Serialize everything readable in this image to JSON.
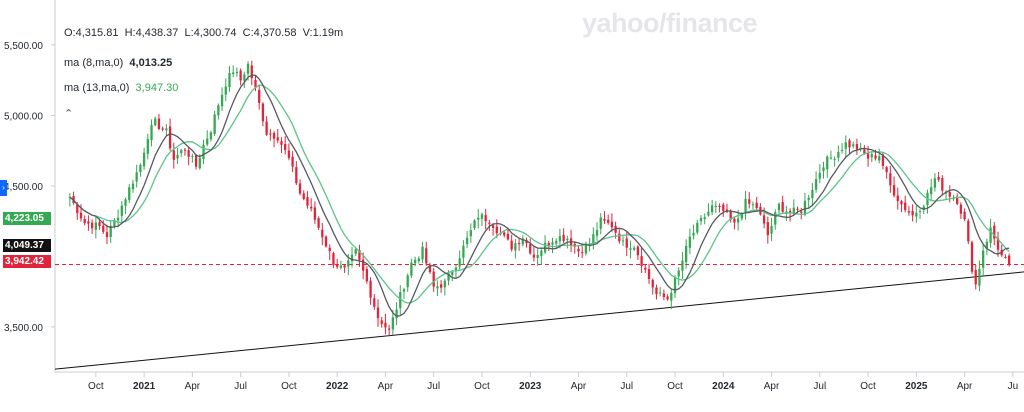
{
  "watermark": "yahoo/finance",
  "ohlcv": {
    "open": "O:4,315.81",
    "high": "H:4,438.37",
    "low": "L:4,300.74",
    "close": "C:4,370.58",
    "volume": "V:1.19m"
  },
  "indicators": [
    {
      "label": "ma (8,ma,0)",
      "value": "4,013.25",
      "color": "#555b60"
    },
    {
      "label": "ma (13,ma,0)",
      "value": "3,947.30",
      "color": "#35a853"
    }
  ],
  "badges": {
    "ma13": "4,223.05",
    "ma8": "4,049.37",
    "last": "3,942.42"
  },
  "colors": {
    "up": "#35a853",
    "down": "#e0243b",
    "ma8": "#555b60",
    "ma13": "#5cc48a",
    "trend": "#111111",
    "refline": "#e0243b",
    "accent": "#0f69ff"
  },
  "icons": {
    "collapse": "chevron-up-icon",
    "side_tab": "chevron-right-icon"
  },
  "chart_data": {
    "type": "candlestick",
    "y_ticks": [
      "5,500.00",
      "5,000.00",
      "4,500.00",
      "3,500.00"
    ],
    "y_tick_values": [
      5500,
      5000,
      4500,
      3500
    ],
    "ylim": [
      3180,
      5620
    ],
    "x_tick_labels": [
      "Oct",
      "2021",
      "Apr",
      "Jul",
      "Oct",
      "2022",
      "Apr",
      "Jul",
      "Oct",
      "2023",
      "Apr",
      "Jul",
      "Oct",
      "2024",
      "Apr",
      "Jul",
      "Oct",
      "2025",
      "Apr",
      "Ju"
    ],
    "x_tick_weeks": [
      7,
      20,
      33,
      46,
      59,
      72,
      85,
      98,
      111,
      124,
      137,
      150,
      163,
      176,
      189,
      202,
      215,
      228,
      241,
      254
    ],
    "year_ticks": [
      "2021",
      "2022",
      "2023",
      "2024",
      "2025"
    ],
    "x_span_weeks": [
      -4,
      257
    ],
    "reference_line": 3942.42,
    "trend_line": {
      "start": [
        -4,
        3200
      ],
      "end": [
        257,
        3890
      ]
    },
    "close_anchors": [
      [
        0,
        4420
      ],
      [
        4,
        4240
      ],
      [
        8,
        4210
      ],
      [
        10,
        4150
      ],
      [
        13,
        4300
      ],
      [
        16,
        4480
      ],
      [
        19,
        4650
      ],
      [
        21,
        4860
      ],
      [
        23,
        4950
      ],
      [
        26,
        4880
      ],
      [
        28,
        4690
      ],
      [
        31,
        4770
      ],
      [
        34,
        4640
      ],
      [
        36,
        4790
      ],
      [
        38,
        4900
      ],
      [
        40,
        5080
      ],
      [
        42,
        5230
      ],
      [
        44,
        5320
      ],
      [
        46,
        5250
      ],
      [
        48,
        5360
      ],
      [
        50,
        5180
      ],
      [
        53,
        4880
      ],
      [
        56,
        4850
      ],
      [
        59,
        4690
      ],
      [
        62,
        4450
      ],
      [
        65,
        4320
      ],
      [
        68,
        4150
      ],
      [
        71,
        3960
      ],
      [
        74,
        3900
      ],
      [
        77,
        4030
      ],
      [
        80,
        3820
      ],
      [
        83,
        3570
      ],
      [
        86,
        3470
      ],
      [
        89,
        3720
      ],
      [
        92,
        3950
      ],
      [
        95,
        4040
      ],
      [
        98,
        3780
      ],
      [
        101,
        3810
      ],
      [
        104,
        3950
      ],
      [
        107,
        4120
      ],
      [
        110,
        4290
      ],
      [
        113,
        4260
      ],
      [
        116,
        4160
      ],
      [
        119,
        4070
      ],
      [
        122,
        4140
      ],
      [
        125,
        4000
      ],
      [
        128,
        4080
      ],
      [
        131,
        4140
      ],
      [
        134,
        4130
      ],
      [
        137,
        4040
      ],
      [
        140,
        4090
      ],
      [
        143,
        4250
      ],
      [
        146,
        4220
      ],
      [
        149,
        4090
      ],
      [
        152,
        4080
      ],
      [
        155,
        3900
      ],
      [
        158,
        3730
      ],
      [
        161,
        3700
      ],
      [
        164,
        3890
      ],
      [
        167,
        4130
      ],
      [
        170,
        4250
      ],
      [
        173,
        4350
      ],
      [
        176,
        4320
      ],
      [
        179,
        4220
      ],
      [
        182,
        4380
      ],
      [
        185,
        4350
      ],
      [
        188,
        4150
      ],
      [
        191,
        4360
      ],
      [
        194,
        4310
      ],
      [
        197,
        4330
      ],
      [
        200,
        4490
      ],
      [
        203,
        4660
      ],
      [
        206,
        4720
      ],
      [
        209,
        4800
      ],
      [
        212,
        4770
      ],
      [
        215,
        4700
      ],
      [
        218,
        4720
      ],
      [
        221,
        4500
      ],
      [
        224,
        4370
      ],
      [
        227,
        4290
      ],
      [
        230,
        4380
      ],
      [
        233,
        4550
      ],
      [
        236,
        4460
      ],
      [
        239,
        4400
      ],
      [
        241,
        4250
      ],
      [
        243,
        3920
      ],
      [
        244,
        3800
      ],
      [
        246,
        4050
      ],
      [
        248,
        4190
      ],
      [
        251,
        4000
      ],
      [
        253,
        3942
      ]
    ]
  }
}
